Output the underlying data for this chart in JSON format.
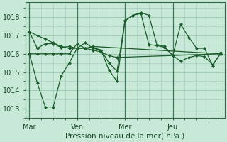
{
  "bg_color": "#c8e8d8",
  "grid_color": "#a0ccb8",
  "line_color": "#1a5c2a",
  "marker_color": "#1a5c2a",
  "xlabel": "Pression niveau de la mer( hPa )",
  "ylim": [
    1012.5,
    1018.8
  ],
  "yticks": [
    1013,
    1014,
    1015,
    1016,
    1017,
    1018
  ],
  "xtick_labels": [
    "Mar",
    "Ven",
    "Mer",
    "Jeu"
  ],
  "xtick_pos": [
    0,
    24,
    48,
    72
  ],
  "vline_pos": [
    0,
    24,
    48,
    72
  ],
  "xlim": [
    -2,
    98
  ],
  "series": [
    {
      "x": [
        0,
        4,
        8,
        12,
        16,
        20,
        24,
        28,
        32,
        96
      ],
      "y": [
        1017.2,
        1017.0,
        1016.8,
        1016.6,
        1016.4,
        1016.3,
        1016.3,
        1016.3,
        1016.4,
        1016.0
      ]
    },
    {
      "x": [
        0,
        4,
        8,
        12,
        16,
        20,
        24,
        28,
        32,
        36,
        40,
        44,
        96
      ],
      "y": [
        1016.0,
        1016.0,
        1016.0,
        1016.0,
        1016.0,
        1016.0,
        1016.55,
        1016.3,
        1016.2,
        1016.1,
        1015.9,
        1015.8,
        1016.0
      ]
    },
    {
      "x": [
        0,
        4,
        8,
        12,
        16,
        20,
        24,
        28,
        32,
        36,
        40,
        44,
        48,
        52,
        56,
        60,
        64,
        68,
        72,
        76,
        80,
        84,
        88,
        92,
        96
      ],
      "y": [
        1016.0,
        1014.4,
        1013.1,
        1013.1,
        1014.8,
        1015.5,
        1016.3,
        1016.6,
        1016.3,
        1016.2,
        1015.1,
        1014.5,
        1017.8,
        1018.1,
        1018.25,
        1018.1,
        1016.5,
        1016.4,
        1015.9,
        1015.6,
        1015.8,
        1015.9,
        1015.85,
        1015.4,
        1016.0
      ]
    },
    {
      "x": [
        0,
        4,
        8,
        12,
        16,
        20,
        24,
        28,
        32,
        36,
        40,
        44,
        48,
        52,
        56,
        60,
        64,
        68,
        72,
        76,
        80,
        84,
        88,
        92,
        96
      ],
      "y": [
        1017.2,
        1016.3,
        1016.55,
        1016.55,
        1016.35,
        1016.4,
        1016.3,
        1016.3,
        1016.35,
        1016.2,
        1015.5,
        1015.05,
        1017.8,
        1018.1,
        1018.2,
        1016.5,
        1016.45,
        1016.35,
        1015.9,
        1017.6,
        1016.9,
        1016.3,
        1016.3,
        1015.35,
        1016.05
      ]
    }
  ]
}
